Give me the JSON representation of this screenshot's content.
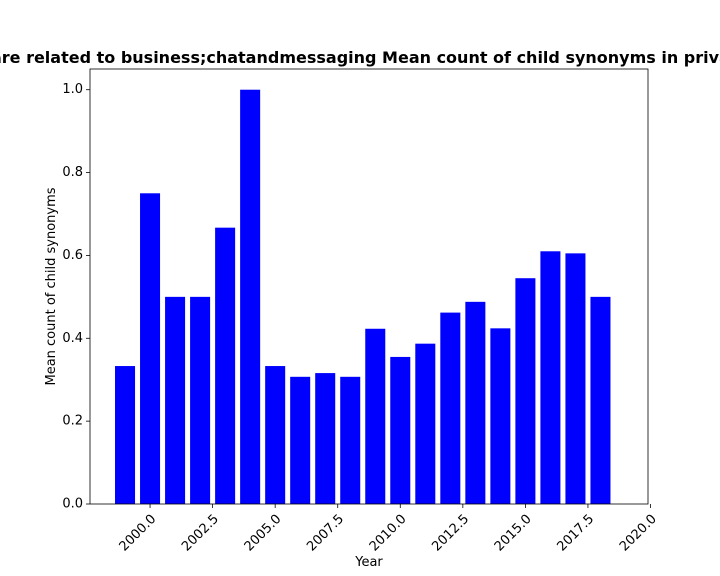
{
  "chart_data": {
    "type": "bar",
    "title": "Total papers that are related to business;chatandmessaging Mean count of child synonyms in privacy-related papers",
    "xlabel": "Year",
    "ylabel": "Mean count of child synonyms",
    "x": [
      1999,
      2000,
      2001,
      2002,
      2003,
      2004,
      2005,
      2006,
      2007,
      2008,
      2009,
      2010,
      2011,
      2012,
      2013,
      2014,
      2015,
      2016,
      2017,
      2018
    ],
    "values": [
      0.333,
      0.75,
      0.5,
      0.5,
      0.667,
      1.0,
      0.333,
      0.307,
      0.316,
      0.307,
      0.423,
      0.355,
      0.387,
      0.462,
      0.488,
      0.424,
      0.545,
      0.61,
      0.605,
      0.5
    ],
    "xlim": [
      1997.6,
      2019.9
    ],
    "ylim": [
      0,
      1.05
    ],
    "xticks": [
      2000.0,
      2002.5,
      2005.0,
      2007.5,
      2010.0,
      2012.5,
      2015.0,
      2017.5,
      2020.0
    ],
    "xtick_labels": [
      "2000.0",
      "2002.5",
      "2005.0",
      "2007.5",
      "2010.0",
      "2012.5",
      "2015.0",
      "2017.5",
      "2020.0"
    ],
    "yticks": [
      0.0,
      0.2,
      0.4,
      0.6,
      0.8,
      1.0
    ],
    "ytick_labels": [
      "0.0",
      "0.2",
      "0.4",
      "0.6",
      "0.8",
      "1.0"
    ],
    "bar_color": "#0000ff",
    "grid": false,
    "legend": "none"
  }
}
